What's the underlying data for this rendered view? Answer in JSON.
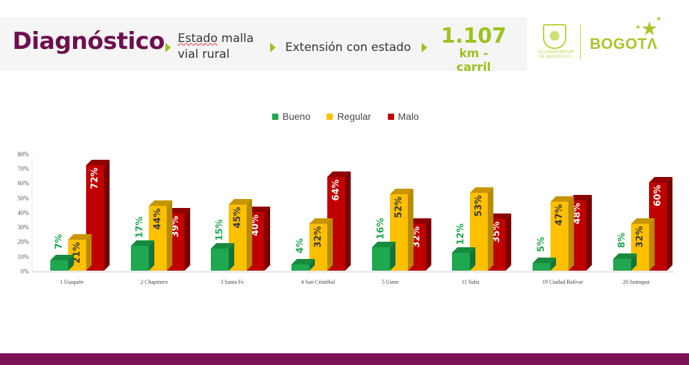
{
  "header": {
    "title": "Diagnóstico",
    "subtitle_1_line1": "Estado",
    "subtitle_1_line1b": " malla",
    "subtitle_1_line2": "vial rural",
    "subtitle_2": "Extensión con estado",
    "value": "1.107",
    "value_unit": "km - carril"
  },
  "logos": {
    "alcaldia_line1": "ALCALDÍA MAYOR",
    "alcaldia_line2": "DE BOGOTÁ D.C.",
    "bogota": "BOGOTΛ"
  },
  "colors": {
    "title": "#6e0f4f",
    "accent": "#9bc31c",
    "footer": "#7a1255",
    "bueno": "#1fa84f",
    "regular": "#ffc000",
    "malo": "#c00000"
  },
  "chart_data": {
    "type": "bar",
    "title": "",
    "xlabel": "",
    "ylabel": "",
    "ylim": [
      0,
      80
    ],
    "yticks": [
      "0%",
      "10%",
      "20%",
      "30%",
      "40%",
      "50%",
      "60%",
      "70%",
      "80%"
    ],
    "legend_position": "top",
    "grid": false,
    "style": "3d-clustered-column",
    "categories": [
      "1 Usaquén",
      "2 Chapinero",
      "3 Santa Fe",
      "4 San Cristóbal",
      "5 Usme",
      "11 Suba",
      "19 Ciudad Bolívar",
      "20 Sumapaz"
    ],
    "series": [
      {
        "name": "Bueno",
        "color": "#1fa84f",
        "values": [
          7,
          17,
          15,
          4,
          16,
          12,
          5,
          8
        ]
      },
      {
        "name": "Regular",
        "color": "#ffc000",
        "values": [
          21,
          44,
          45,
          32,
          52,
          53,
          47,
          32
        ]
      },
      {
        "name": "Malo",
        "color": "#c00000",
        "values": [
          72,
          39,
          40,
          64,
          32,
          35,
          48,
          60
        ]
      }
    ]
  }
}
